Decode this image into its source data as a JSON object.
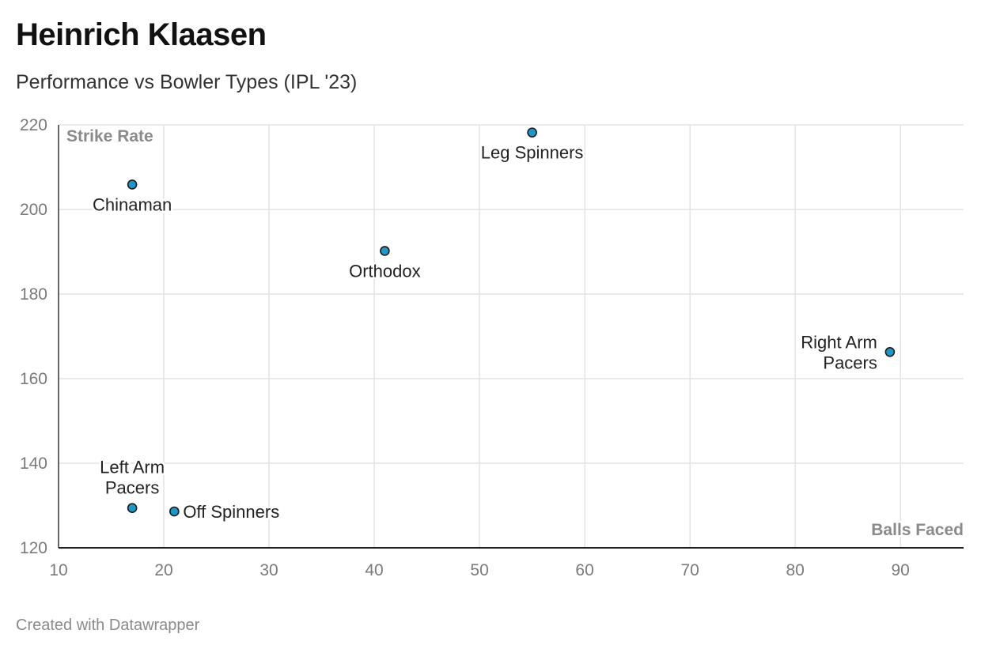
{
  "header": {
    "title": "Heinrich Klaasen",
    "subtitle": "Performance vs Bowler Types (IPL '23)"
  },
  "footer": {
    "credit": "Created with Datawrapper"
  },
  "chart_data": {
    "type": "scatter",
    "title": "Heinrich Klaasen",
    "subtitle": "Performance vs Bowler Types (IPL '23)",
    "xlabel": "Balls Faced",
    "ylabel": "Strike Rate",
    "xlim": [
      10,
      96
    ],
    "ylim": [
      120,
      220
    ],
    "xticks": [
      10,
      20,
      30,
      40,
      50,
      60,
      70,
      80,
      90
    ],
    "yticks": [
      120,
      140,
      160,
      180,
      200,
      220
    ],
    "grid": true,
    "legend": "none",
    "marker_color": "#1e97c8",
    "points": [
      {
        "label": [
          "Leg Spinners"
        ],
        "x": 55,
        "y": 218.2,
        "label_pos": "below"
      },
      {
        "label": [
          "Chinaman"
        ],
        "x": 17,
        "y": 205.9,
        "label_pos": "below"
      },
      {
        "label": [
          "Orthodox"
        ],
        "x": 41,
        "y": 190.2,
        "label_pos": "below"
      },
      {
        "label": [
          "Right Arm",
          "Pacers"
        ],
        "x": 89,
        "y": 166.3,
        "label_pos": "left"
      },
      {
        "label": [
          "Left Arm",
          "Pacers"
        ],
        "x": 17,
        "y": 129.4,
        "label_pos": "above"
      },
      {
        "label": [
          "Off Spinners"
        ],
        "x": 21,
        "y": 128.6,
        "label_pos": "right"
      }
    ]
  }
}
